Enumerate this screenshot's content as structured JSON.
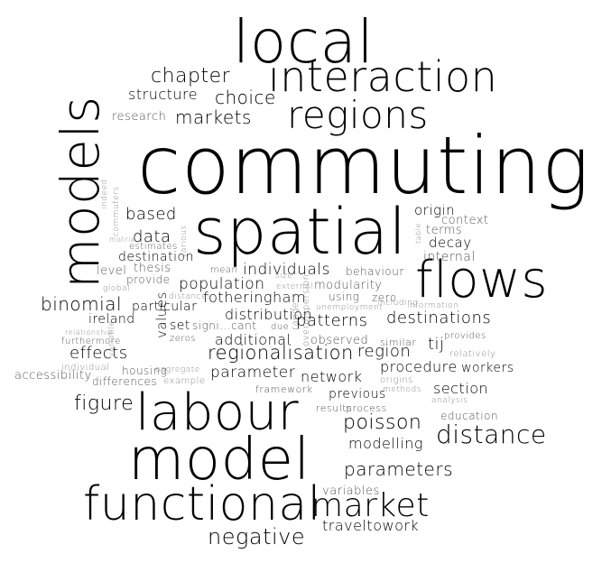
{
  "words": {
    "w1": "local",
    "w2": "interaction",
    "w3": "regions",
    "w4": "chapter",
    "w5": "structure",
    "w6": "choice",
    "w7": "research",
    "w8": "markets",
    "w9": "models",
    "w10": "commuting",
    "w11": "spatial",
    "w12": "flows",
    "w13": "based",
    "w14": "data",
    "w15": "estimates",
    "w16": "destination",
    "w17": "level",
    "w18": "thesis",
    "w19": "provide",
    "w20": "global",
    "w21": "distances",
    "w22": "mean",
    "w23": "individuals",
    "w24": "behaviour",
    "w25": "population",
    "w26": "modularity",
    "w27": "binomial",
    "w28": "particular",
    "w29": "fotheringham",
    "w30": "using",
    "w31": "zero",
    "w32": "information",
    "w33": "ireland",
    "w34": "distribution",
    "w35": "unemployment",
    "w36": "including",
    "w37": "relationship",
    "w38": "set",
    "w39": "signi...cant",
    "w40": "due",
    "w41": "patterns",
    "w42": "destinations",
    "w43": "furthermore",
    "w44": "zeros",
    "w45": "additional",
    "w46": "observed",
    "w47": "similar",
    "w48": "provides",
    "w49": "effects",
    "w50": "regionalisation",
    "w51": "region",
    "w52": "tij",
    "w53": "relatively",
    "w54": "accessibility",
    "w55": "individual",
    "w56": "housing",
    "w57": "aggregate",
    "w58": "differences",
    "w59": "example",
    "w60": "parameter",
    "w61": "network",
    "w62": "procedure",
    "w63": "workers",
    "w64": "framework",
    "w65": "origins",
    "w66": "methods",
    "w67": "section",
    "w68": "previous",
    "w69": "analysis",
    "w70": "figure",
    "w71": "labour",
    "w72": "results",
    "w73": "process",
    "w74": "education",
    "w75": "poisson",
    "w76": "distance",
    "w77": "modelling",
    "w78": "model",
    "w79": "parameters",
    "w80": "functional",
    "w81": "market",
    "w82": "variables",
    "w83": "traveltowork",
    "w84": "negative",
    "w85": "origin",
    "w86": "context",
    "w87": "terms",
    "w88": "decay",
    "w89": "internal",
    "w90": "table",
    "w91": "indeed",
    "w92": "commuters",
    "w93": "matrix",
    "w94": "various",
    "w95": "values",
    "w96": "variable",
    "w97": "size",
    "w98": "external",
    "w99": "range",
    "w100": "overdispersion"
  }
}
